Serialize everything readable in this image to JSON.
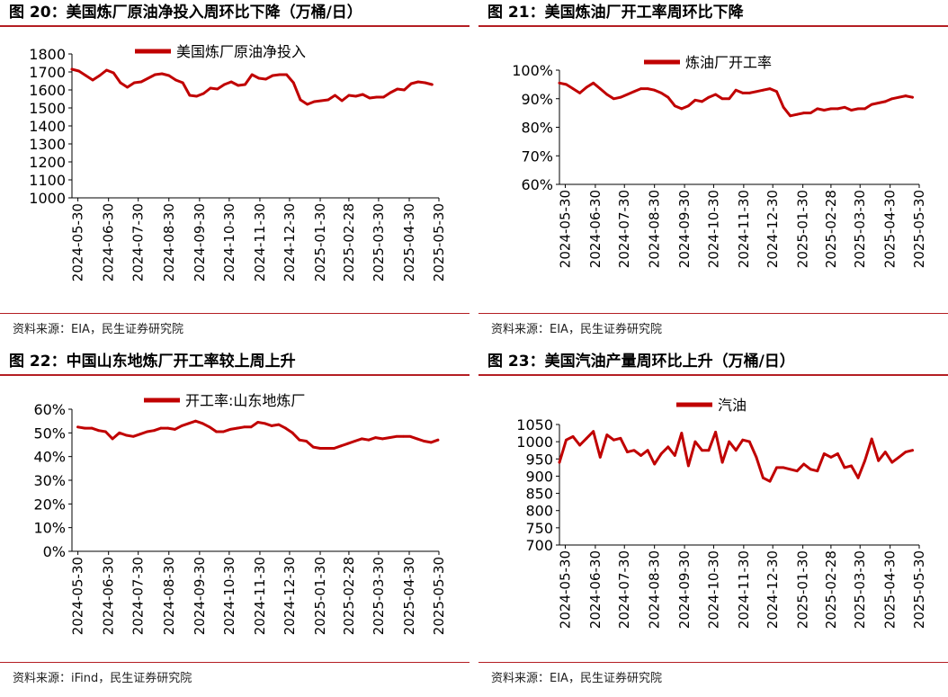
{
  "colors": {
    "line": "#c00000",
    "rule": "#b41e23",
    "axis": "#000000"
  },
  "panels": [
    {
      "title": "图 20：美国炼厂原油净投入周环比下降（万桶/日）",
      "source": "资料来源：EIA，民生证券研究院",
      "chart_data": {
        "type": "line",
        "title": "",
        "xlabel": "",
        "ylabel": "",
        "legend_position": "top",
        "grid": false,
        "ylim": [
          1000,
          1800
        ],
        "yticks": [
          1000,
          1100,
          1200,
          1300,
          1400,
          1500,
          1600,
          1700,
          1800
        ],
        "yformat": "int",
        "xlim": [
          "2024-05-24",
          "2025-05-30"
        ],
        "xticks": [
          "2024-05-30",
          "2024-06-30",
          "2024-07-30",
          "2024-08-30",
          "2024-09-30",
          "2024-10-30",
          "2024-11-30",
          "2024-12-30",
          "2025-01-30",
          "2025-02-28",
          "2025-03-30",
          "2025-04-30",
          "2025-05-30"
        ],
        "series": [
          {
            "name": "美国炼厂原油净投入",
            "x": [
              "2024-05-24",
              "2024-05-31",
              "2024-06-07",
              "2024-06-14",
              "2024-06-21",
              "2024-06-28",
              "2024-07-05",
              "2024-07-12",
              "2024-07-19",
              "2024-07-26",
              "2024-08-02",
              "2024-08-09",
              "2024-08-16",
              "2024-08-23",
              "2024-08-30",
              "2024-09-06",
              "2024-09-13",
              "2024-09-20",
              "2024-09-27",
              "2024-10-04",
              "2024-10-11",
              "2024-10-18",
              "2024-10-25",
              "2024-11-01",
              "2024-11-08",
              "2024-11-15",
              "2024-11-22",
              "2024-11-29",
              "2024-12-06",
              "2024-12-13",
              "2024-12-20",
              "2024-12-27",
              "2025-01-03",
              "2025-01-10",
              "2025-01-17",
              "2025-01-24",
              "2025-01-31",
              "2025-02-07",
              "2025-02-14",
              "2025-02-21",
              "2025-02-28",
              "2025-03-07",
              "2025-03-14",
              "2025-03-21",
              "2025-03-28",
              "2025-04-04",
              "2025-04-11",
              "2025-04-18",
              "2025-04-25",
              "2025-05-02",
              "2025-05-09",
              "2025-05-16",
              "2025-05-23"
            ],
            "values": [
              1715,
              1705,
              1680,
              1655,
              1680,
              1710,
              1695,
              1640,
              1615,
              1640,
              1645,
              1665,
              1685,
              1690,
              1680,
              1655,
              1640,
              1570,
              1565,
              1580,
              1610,
              1605,
              1630,
              1645,
              1625,
              1630,
              1685,
              1665,
              1660,
              1680,
              1685,
              1685,
              1640,
              1545,
              1520,
              1535,
              1540,
              1545,
              1570,
              1540,
              1570,
              1565,
              1575,
              1555,
              1560,
              1560,
              1585,
              1605,
              1600,
              1635,
              1645,
              1640,
              1630
            ]
          }
        ]
      }
    },
    {
      "title": "图 21：美国炼油厂开工率周环比下降",
      "source": "资料来源：EIA，民生证券研究院",
      "chart_data": {
        "type": "line",
        "title": "",
        "xlabel": "",
        "ylabel": "",
        "legend_position": "top",
        "grid": false,
        "ylim": [
          60,
          100
        ],
        "yticks": [
          60,
          70,
          80,
          90,
          100
        ],
        "yformat": "pct",
        "xlim": [
          "2024-05-24",
          "2025-05-30"
        ],
        "xticks": [
          "2024-05-30",
          "2024-06-30",
          "2024-07-30",
          "2024-08-30",
          "2024-09-30",
          "2024-10-30",
          "2024-11-30",
          "2024-12-30",
          "2025-01-30",
          "2025-02-28",
          "2025-03-30",
          "2025-04-30",
          "2025-05-30"
        ],
        "series": [
          {
            "name": "炼油厂开工率",
            "x": [
              "2024-05-24",
              "2024-05-31",
              "2024-06-07",
              "2024-06-14",
              "2024-06-21",
              "2024-06-28",
              "2024-07-05",
              "2024-07-12",
              "2024-07-19",
              "2024-07-26",
              "2024-08-02",
              "2024-08-09",
              "2024-08-16",
              "2024-08-23",
              "2024-08-30",
              "2024-09-06",
              "2024-09-13",
              "2024-09-20",
              "2024-09-27",
              "2024-10-04",
              "2024-10-11",
              "2024-10-18",
              "2024-10-25",
              "2024-11-01",
              "2024-11-08",
              "2024-11-15",
              "2024-11-22",
              "2024-11-29",
              "2024-12-06",
              "2024-12-13",
              "2024-12-20",
              "2024-12-27",
              "2025-01-03",
              "2025-01-10",
              "2025-01-17",
              "2025-01-24",
              "2025-01-31",
              "2025-02-07",
              "2025-02-14",
              "2025-02-21",
              "2025-02-28",
              "2025-03-07",
              "2025-03-14",
              "2025-03-21",
              "2025-03-28",
              "2025-04-04",
              "2025-04-11",
              "2025-04-18",
              "2025-04-25",
              "2025-05-02",
              "2025-05-09",
              "2025-05-16",
              "2025-05-23"
            ],
            "values": [
              95.5,
              95.0,
              93.5,
              92.0,
              94.0,
              95.5,
              93.5,
              91.5,
              90.0,
              90.5,
              91.5,
              92.5,
              93.5,
              93.5,
              93.0,
              92.0,
              90.5,
              87.5,
              86.5,
              87.5,
              89.5,
              89.0,
              90.5,
              91.5,
              90.0,
              90.0,
              93.0,
              92.0,
              92.0,
              92.5,
              93.0,
              93.5,
              92.5,
              87.0,
              84.0,
              84.5,
              85.0,
              85.0,
              86.5,
              86.0,
              86.5,
              86.5,
              87.0,
              86.0,
              86.5,
              86.5,
              88.0,
              88.5,
              89.0,
              90.0,
              90.5,
              91.0,
              90.5
            ]
          }
        ]
      }
    },
    {
      "title": "图 22：中国山东地炼厂开工率较上周上升",
      "source": "资料来源：iFind，民生证券研究院",
      "chart_data": {
        "type": "line",
        "title": "",
        "xlabel": "",
        "ylabel": "",
        "legend_position": "top",
        "grid": false,
        "ylim": [
          0,
          60
        ],
        "yticks": [
          0,
          10,
          20,
          30,
          40,
          50,
          60
        ],
        "yformat": "pct",
        "xlim": [
          "2024-05-24",
          "2025-05-30"
        ],
        "xticks": [
          "2024-05-30",
          "2024-06-30",
          "2024-07-30",
          "2024-08-30",
          "2024-09-30",
          "2024-10-30",
          "2024-11-30",
          "2024-12-30",
          "2025-01-30",
          "2025-02-28",
          "2025-03-30",
          "2025-04-30",
          "2025-05-30"
        ],
        "series": [
          {
            "name": "开工率:山东地炼厂",
            "x": [
              "2024-05-30",
              "2024-06-06",
              "2024-06-13",
              "2024-06-20",
              "2024-06-27",
              "2024-07-04",
              "2024-07-11",
              "2024-07-18",
              "2024-07-25",
              "2024-08-01",
              "2024-08-08",
              "2024-08-15",
              "2024-08-22",
              "2024-08-29",
              "2024-09-05",
              "2024-09-12",
              "2024-09-19",
              "2024-09-26",
              "2024-10-03",
              "2024-10-10",
              "2024-10-17",
              "2024-10-24",
              "2024-10-31",
              "2024-11-07",
              "2024-11-14",
              "2024-11-21",
              "2024-11-28",
              "2024-12-05",
              "2024-12-12",
              "2024-12-19",
              "2024-12-26",
              "2025-01-02",
              "2025-01-09",
              "2025-01-16",
              "2025-01-23",
              "2025-01-30",
              "2025-02-06",
              "2025-02-13",
              "2025-02-20",
              "2025-02-27",
              "2025-03-06",
              "2025-03-13",
              "2025-03-20",
              "2025-03-27",
              "2025-04-03",
              "2025-04-10",
              "2025-04-17",
              "2025-04-24",
              "2025-05-01",
              "2025-05-08",
              "2025-05-15",
              "2025-05-22",
              "2025-05-29"
            ],
            "values": [
              52.5,
              52.0,
              52.0,
              51.0,
              50.5,
              47.5,
              50.0,
              49.0,
              48.5,
              49.5,
              50.5,
              51.0,
              52.0,
              52.0,
              51.5,
              53.0,
              54.0,
              55.0,
              54.0,
              52.5,
              50.5,
              50.5,
              51.5,
              52.0,
              52.5,
              52.5,
              54.5,
              54.0,
              53.0,
              53.5,
              52.0,
              50.0,
              47.0,
              46.5,
              44.0,
              43.5,
              43.5,
              43.5,
              44.5,
              45.5,
              46.5,
              47.5,
              47.0,
              48.0,
              47.5,
              48.0,
              48.5,
              48.5,
              48.5,
              47.5,
              46.5,
              46.0,
              47.0
            ]
          }
        ]
      }
    },
    {
      "title": "图 23：美国汽油产量周环比上升（万桶/日）",
      "source": "资料来源：EIA，民生证券研究院",
      "chart_data": {
        "type": "line",
        "title": "",
        "xlabel": "",
        "ylabel": "",
        "legend_position": "top",
        "grid": false,
        "ylim": [
          700,
          1050
        ],
        "yticks": [
          700,
          750,
          800,
          850,
          900,
          950,
          1000,
          1050
        ],
        "yformat": "int",
        "xlim": [
          "2024-05-24",
          "2025-05-30"
        ],
        "xticks": [
          "2024-05-30",
          "2024-06-30",
          "2024-07-30",
          "2024-08-30",
          "2024-09-30",
          "2024-10-30",
          "2024-11-30",
          "2024-12-30",
          "2025-01-30",
          "2025-02-28",
          "2025-03-30",
          "2025-04-30",
          "2025-05-30"
        ],
        "series": [
          {
            "name": "汽油",
            "x": [
              "2024-05-24",
              "2024-05-31",
              "2024-06-07",
              "2024-06-14",
              "2024-06-21",
              "2024-06-28",
              "2024-07-05",
              "2024-07-12",
              "2024-07-19",
              "2024-07-26",
              "2024-08-02",
              "2024-08-09",
              "2024-08-16",
              "2024-08-23",
              "2024-08-30",
              "2024-09-06",
              "2024-09-13",
              "2024-09-20",
              "2024-09-27",
              "2024-10-04",
              "2024-10-11",
              "2024-10-18",
              "2024-10-25",
              "2024-11-01",
              "2024-11-08",
              "2024-11-15",
              "2024-11-22",
              "2024-11-29",
              "2024-12-06",
              "2024-12-13",
              "2024-12-20",
              "2024-12-27",
              "2025-01-03",
              "2025-01-10",
              "2025-01-17",
              "2025-01-24",
              "2025-01-31",
              "2025-02-07",
              "2025-02-14",
              "2025-02-21",
              "2025-02-28",
              "2025-03-07",
              "2025-03-14",
              "2025-03-21",
              "2025-03-28",
              "2025-04-04",
              "2025-04-11",
              "2025-04-18",
              "2025-04-25",
              "2025-05-02",
              "2025-05-09",
              "2025-05-16",
              "2025-05-23"
            ],
            "values": [
              940,
              1005,
              1015,
              990,
              1010,
              1030,
              955,
              1020,
              1005,
              1010,
              970,
              975,
              960,
              975,
              935,
              965,
              985,
              960,
              1025,
              930,
              1000,
              975,
              975,
              1028,
              940,
              1000,
              975,
              1005,
              1000,
              955,
              895,
              885,
              925,
              925,
              920,
              915,
              935,
              920,
              915,
              965,
              955,
              965,
              925,
              930,
              895,
              945,
              1008,
              945,
              970,
              940,
              955,
              970,
              975
            ]
          }
        ]
      }
    }
  ]
}
